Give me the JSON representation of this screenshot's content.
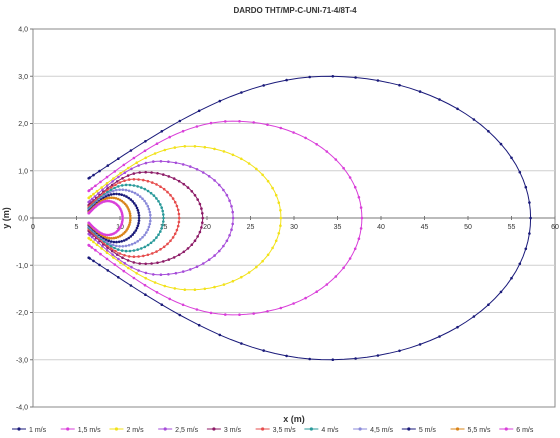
{
  "chart_data": {
    "type": "scatter",
    "title": "DARDO THT/MP-C-UNI-71-4/8T-4",
    "xlabel": "x (m)",
    "ylabel": "y (m)",
    "xlim": [
      0,
      60
    ],
    "ylim": [
      -4,
      4
    ],
    "x_ticks": [
      "0",
      "5",
      "10",
      "15",
      "20",
      "25",
      "30",
      "35",
      "40",
      "45",
      "50",
      "55",
      "60"
    ],
    "y_ticks": [
      "4,0",
      "3,0",
      "2,0",
      "1,0",
      "0,0",
      "-1,0",
      "-2,0",
      "-3,0",
      "-4,0"
    ],
    "grid": "horizontal",
    "legend_position": "bottom",
    "series": [
      {
        "name": "1 m/s",
        "color": "#1a1a7a",
        "x0": 6.4,
        "x_max": 57.2,
        "x_peak": 34.0,
        "y_max": 3.0
      },
      {
        "name": "1,5 m/s",
        "color": "#d93fd9",
        "x0": 6.4,
        "x_max": 37.8,
        "x_peak": 23.0,
        "y_max": 2.05
      },
      {
        "name": "2 m/s",
        "color": "#f2e21a",
        "x0": 6.4,
        "x_max": 28.5,
        "x_peak": 18.0,
        "y_max": 1.52
      },
      {
        "name": "2,5 m/s",
        "color": "#a64dd9",
        "x0": 6.4,
        "x_max": 23.0,
        "x_peak": 14.5,
        "y_max": 1.2
      },
      {
        "name": "3 m/s",
        "color": "#8c1a66",
        "x0": 6.4,
        "x_max": 19.5,
        "x_peak": 12.8,
        "y_max": 0.97
      },
      {
        "name": "3,5 m/s",
        "color": "#e64d4d",
        "x0": 6.4,
        "x_max": 16.8,
        "x_peak": 11.6,
        "y_max": 0.82
      },
      {
        "name": "4 m/s",
        "color": "#2a9a9a",
        "x0": 6.4,
        "x_max": 15.0,
        "x_peak": 10.8,
        "y_max": 0.7
      },
      {
        "name": "4,5 m/s",
        "color": "#8a8ad9",
        "x0": 6.4,
        "x_max": 13.5,
        "x_peak": 10.1,
        "y_max": 0.6
      },
      {
        "name": "5 m/s",
        "color": "#1a1a7a",
        "x0": 6.4,
        "x_max": 12.2,
        "x_peak": 9.5,
        "y_max": 0.51
      },
      {
        "name": "5,5 m/s",
        "color": "#d9841a",
        "x0": 6.4,
        "x_max": 11.2,
        "x_peak": 9.0,
        "y_max": 0.43
      },
      {
        "name": "6 m/s",
        "color": "#d93fd9",
        "x0": 6.4,
        "x_max": 10.3,
        "x_peak": 8.6,
        "y_max": 0.36
      }
    ]
  }
}
